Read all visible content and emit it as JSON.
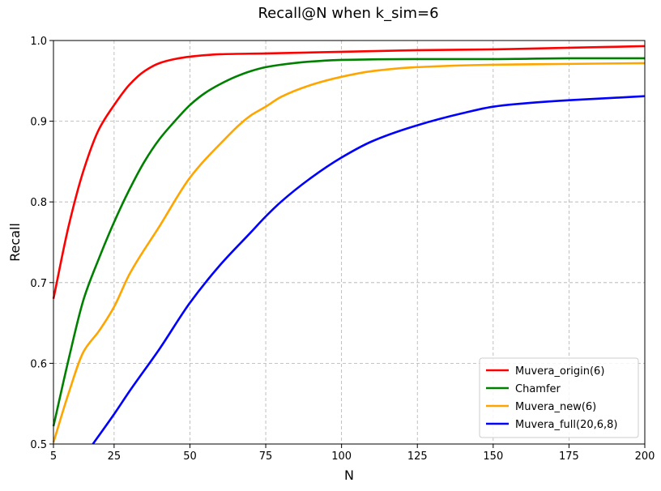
{
  "chart_data": {
    "type": "line",
    "title": "Recall@N when k_sim=6",
    "xlabel": "N",
    "ylabel": "Recall",
    "xlim": [
      5,
      200
    ],
    "ylim": [
      0.5,
      1.0
    ],
    "xticks": [
      5,
      25,
      50,
      75,
      100,
      125,
      150,
      175,
      200
    ],
    "yticks": [
      0.5,
      0.6,
      0.7,
      0.8,
      0.9,
      1.0
    ],
    "ytick_labels": [
      "0.5",
      "0.6",
      "0.7",
      "0.8",
      "0.9",
      "1.0"
    ],
    "grid": true,
    "legend_position": "lower-right",
    "series": [
      {
        "name": "Muvera_origin(6)",
        "color": "#ff0000",
        "x": [
          5,
          10,
          15,
          20,
          25,
          30,
          35,
          40,
          45,
          50,
          60,
          75,
          100,
          125,
          150,
          175,
          200
        ],
        "y": [
          0.68,
          0.77,
          0.84,
          0.89,
          0.92,
          0.945,
          0.962,
          0.972,
          0.977,
          0.98,
          0.983,
          0.984,
          0.986,
          0.988,
          0.989,
          0.991,
          0.993
        ]
      },
      {
        "name": "Chamfer",
        "color": "#008000",
        "x": [
          5,
          10,
          15,
          20,
          25,
          30,
          35,
          40,
          45,
          50,
          55,
          60,
          65,
          70,
          75,
          80,
          90,
          100,
          125,
          150,
          175,
          200
        ],
        "y": [
          0.522,
          0.605,
          0.68,
          0.73,
          0.775,
          0.815,
          0.85,
          0.878,
          0.9,
          0.92,
          0.935,
          0.946,
          0.955,
          0.962,
          0.967,
          0.97,
          0.974,
          0.976,
          0.977,
          0.977,
          0.978,
          0.978
        ]
      },
      {
        "name": "Muvera_new(6)",
        "color": "#ffa500",
        "x": [
          5,
          10,
          15,
          20,
          25,
          30,
          40,
          50,
          60,
          70,
          75,
          80,
          90,
          100,
          110,
          125,
          150,
          175,
          200
        ],
        "y": [
          0.502,
          0.563,
          0.615,
          0.64,
          0.67,
          0.71,
          0.77,
          0.83,
          0.872,
          0.907,
          0.918,
          0.93,
          0.945,
          0.955,
          0.962,
          0.967,
          0.97,
          0.971,
          0.972
        ]
      },
      {
        "name": "Muvera_full(20,6,8)",
        "color": "#0000ff",
        "x": [
          18,
          25,
          30,
          40,
          50,
          60,
          70,
          75,
          80,
          90,
          100,
          110,
          125,
          140,
          150,
          160,
          175,
          190,
          200
        ],
        "y": [
          0.5,
          0.537,
          0.565,
          0.618,
          0.675,
          0.722,
          0.762,
          0.782,
          0.8,
          0.83,
          0.855,
          0.875,
          0.895,
          0.91,
          0.918,
          0.922,
          0.926,
          0.929,
          0.931
        ]
      }
    ]
  }
}
